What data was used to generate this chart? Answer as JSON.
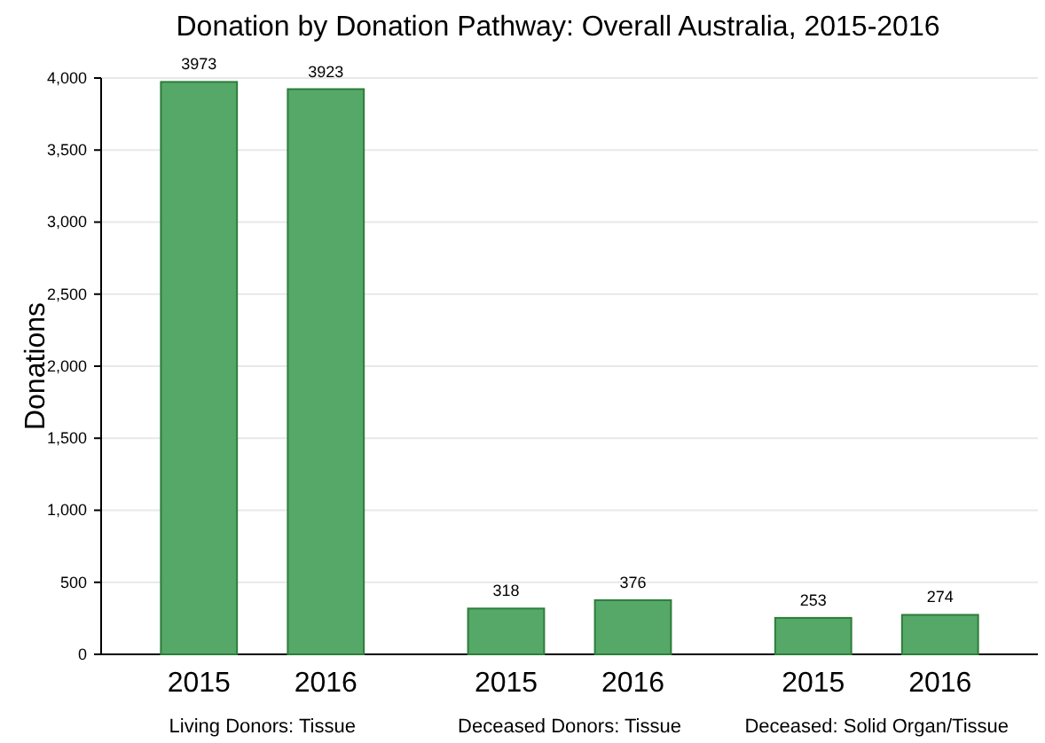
{
  "chart_data": {
    "type": "bar",
    "title": "Donation by Donation Pathway: Overall Australia, 2015-2016",
    "ylabel": "Donations",
    "categories": [
      "Living Donors: Tissue",
      "Deceased Donors: Tissue",
      "Deceased: Solid Organ/Tissue"
    ],
    "series": [
      {
        "name": "2015",
        "color": "#55a868",
        "values": [
          3973,
          318,
          253
        ]
      },
      {
        "name": "2016",
        "color": "#55a868",
        "values": [
          3923,
          376,
          274
        ]
      }
    ],
    "ylim": [
      0,
      4000
    ],
    "yticks": [
      {
        "value": 0,
        "label": "0"
      },
      {
        "value": 500,
        "label": "500"
      },
      {
        "value": 1000,
        "label": "1,000"
      },
      {
        "value": 1500,
        "label": "1,500"
      },
      {
        "value": 2000,
        "label": "2,000"
      },
      {
        "value": 2500,
        "label": "2,500"
      },
      {
        "value": 3000,
        "label": "3,000"
      },
      {
        "value": 3500,
        "label": "3,500"
      },
      {
        "value": 4000,
        "label": "4,000"
      }
    ],
    "grid": "y",
    "data_labels": true
  }
}
